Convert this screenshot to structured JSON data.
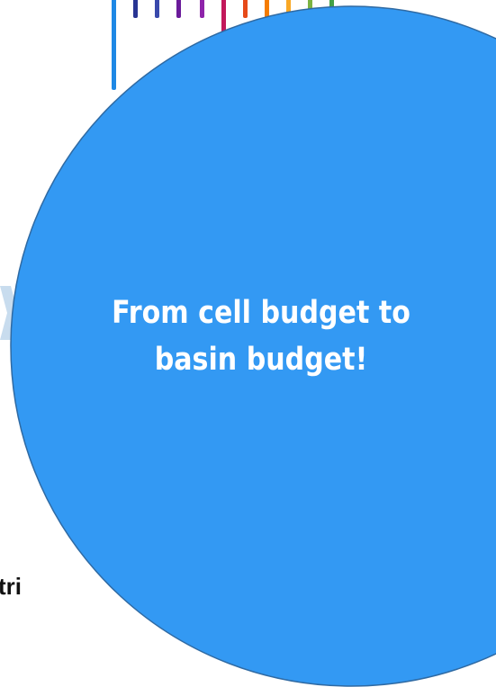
{
  "slide": {
    "ellipse_text": "From cell budget  to\nbasin budget!",
    "side_text_fragment": "tri"
  },
  "colors": {
    "ellipse_fill": "#3399f3",
    "ellipse_stroke": "#2f6aa3",
    "chevron": "#b9d3ea",
    "logo_bars": [
      "#1e88e5",
      "#283593",
      "#6a1b9a",
      "#ad1457",
      "#c2185b",
      "#e64a19",
      "#f57c00",
      "#f9a825",
      "#7cb342"
    ]
  },
  "icons": {
    "logo": "striped-bars-logo",
    "chevron": "chevron-right-icon"
  }
}
